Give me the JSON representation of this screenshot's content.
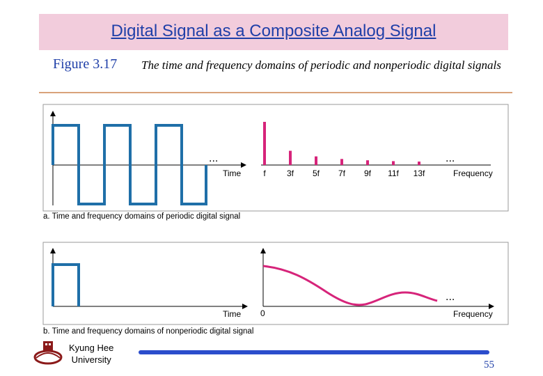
{
  "slide": {
    "title": "Digital Signal as a Composite Analog Signal",
    "figure_label": "Figure 3.17",
    "figure_caption": "The time and frequency domains of periodic and nonperiodic digital signals",
    "page_number": "55"
  },
  "panel_a": {
    "caption": "a. Time and frequency domains of periodic digital signal",
    "time_axis_label": "Time",
    "frequency_axis_label": "Frequency",
    "ellipsis_time": "...",
    "ellipsis_freq": "...",
    "harmonic_labels": [
      "f",
      "3f",
      "5f",
      "7f",
      "9f",
      "11f",
      "13f"
    ],
    "harmonic_amplitudes": [
      1.0,
      0.33,
      0.2,
      0.14,
      0.11,
      0.09,
      0.08
    ]
  },
  "panel_b": {
    "caption": "b. Time and frequency domains of nonperiodic digital signal",
    "time_axis_label": "Time",
    "frequency_axis_label": "Frequency",
    "origin_label": "0",
    "ellipsis_freq": "..."
  },
  "footer": {
    "university_line1": "Kyung Hee",
    "university_line2": "University"
  },
  "colors": {
    "time_signal": "#1f6fa8",
    "freq_signal": "#d6247a",
    "title_bg": "#f2ccdc",
    "title_text": "#1f3fa8",
    "footer_bar": "#2b4dcc"
  }
}
